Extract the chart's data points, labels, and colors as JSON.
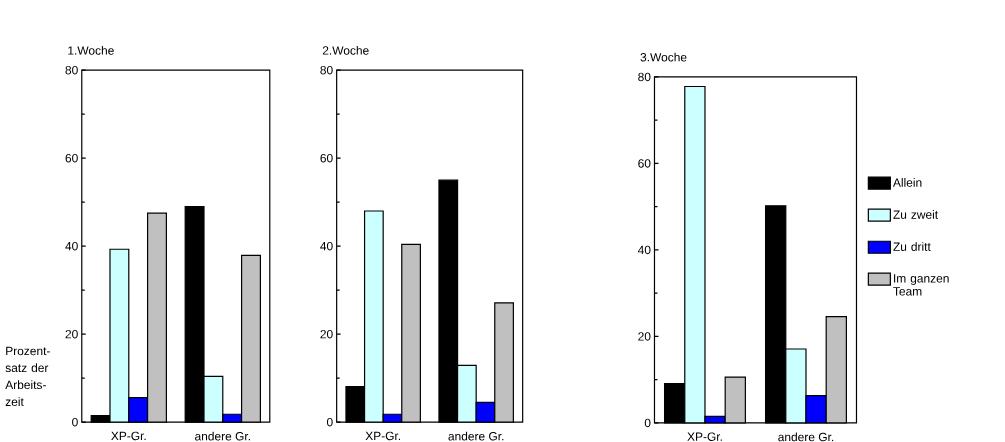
{
  "chart_data": [
    {
      "type": "bar",
      "title": "1.Woche",
      "ylabel": "Prozent- satz der Arbeits- zeit",
      "categories": [
        "XP-Gr.",
        "andere Gr."
      ],
      "ylim": [
        0,
        80
      ],
      "yticks": [
        0,
        20,
        40,
        60,
        80
      ],
      "series": [
        {
          "color": "#000000",
          "values": [
            1.5,
            49
          ]
        },
        {
          "color": "#ccffff",
          "values": [
            39.3,
            10.4
          ]
        },
        {
          "color": "#0000ff",
          "values": [
            5.6,
            1.8
          ]
        },
        {
          "color": "#c0c0c0",
          "values": [
            47.5,
            37.9
          ]
        }
      ]
    },
    {
      "type": "bar",
      "title": "2.Woche",
      "categories": [
        "XP-Gr.",
        "andere Gr."
      ],
      "ylim": [
        0,
        80
      ],
      "yticks": [
        0,
        20,
        40,
        60,
        80
      ],
      "series": [
        {
          "color": "#000000",
          "values": [
            8.1,
            55
          ]
        },
        {
          "color": "#ccffff",
          "values": [
            48,
            12.9
          ]
        },
        {
          "color": "#0000ff",
          "values": [
            1.8,
            4.5
          ]
        },
        {
          "color": "#c0c0c0",
          "values": [
            40.4,
            27.1
          ]
        }
      ]
    },
    {
      "type": "bar",
      "title": "3.Woche",
      "categories": [
        "XP-Gr.",
        "andere Gr."
      ],
      "ylim": [
        0,
        80
      ],
      "yticks": [
        0,
        20,
        40,
        60,
        80
      ],
      "legend": "right",
      "series": [
        {
          "name": "Allein",
          "color": "#000000",
          "values": [
            9.1,
            50.2
          ]
        },
        {
          "name": "Zu zweit",
          "color": "#ccffff",
          "values": [
            77.8,
            17.1
          ]
        },
        {
          "name": "Zu dritt",
          "color": "#0000ff",
          "values": [
            1.5,
            6.3
          ]
        },
        {
          "name": "Im ganzen Team",
          "color": "#c0c0c0",
          "values": [
            10.6,
            24.6
          ]
        }
      ]
    }
  ]
}
